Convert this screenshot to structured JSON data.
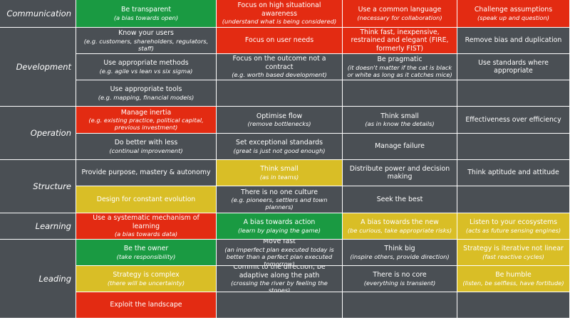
{
  "colors": {
    "green": "#1a9a42",
    "red": "#e32b12",
    "yellow": "#d9be26",
    "gray": "#4a4f54",
    "white": "#ffffff"
  },
  "sections": [
    {
      "label": "Communication",
      "rows": [
        [
          {
            "main": "Be transparent",
            "sub": "(a bias towards open)",
            "color": "green"
          },
          {
            "main": "Focus on high situational awareness",
            "sub": "(understand what is being considered)",
            "color": "red"
          },
          {
            "main": "Use a common language",
            "sub": "(necessary for collaboration)",
            "color": "red"
          },
          {
            "main": "Challenge assumptions",
            "sub": "(speak up and question)",
            "color": "red"
          }
        ]
      ]
    },
    {
      "label": "Development",
      "rows": [
        [
          {
            "main": "Know your users",
            "sub": "(e.g. customers, shareholders, regulators, staff)",
            "color": "gray"
          },
          {
            "main": "Focus on user needs",
            "sub": "",
            "color": "red"
          },
          {
            "main": "Think fast, inexpensive, restrained and elegant (FIRE, formerly FIST)",
            "sub": "",
            "color": "red"
          },
          {
            "main": "Remove bias and duplication",
            "sub": "",
            "color": "gray"
          }
        ],
        [
          {
            "main": "Use appropriate methods",
            "sub": "(e.g. agile vs lean vs six sigma)",
            "color": "gray"
          },
          {
            "main": "Focus on the outcome not a contract",
            "sub": "(e.g. worth based development)",
            "color": "gray"
          },
          {
            "main": "Be pragmatic",
            "sub": "(it doesn't matter if the cat is black or white as long as it catches mice)",
            "color": "gray"
          },
          {
            "main": "Use standards where appropriate",
            "sub": "",
            "color": "gray"
          }
        ],
        [
          {
            "main": "Use appropriate tools",
            "sub": "(e.g. mapping, financial models)",
            "color": "gray"
          },
          {
            "main": "",
            "sub": "",
            "color": "gray"
          },
          {
            "main": "",
            "sub": "",
            "color": "gray"
          },
          {
            "main": "",
            "sub": "",
            "color": "gray"
          }
        ]
      ]
    },
    {
      "label": "Operation",
      "rows": [
        [
          {
            "main": "Manage inertia",
            "sub": "(e.g. existing practice, political capital, previous investment)",
            "color": "red"
          },
          {
            "main": "Optimise flow",
            "sub": "(remove bottlenecks)",
            "color": "gray"
          },
          {
            "main": "Think small",
            "sub": "(as in know the details)",
            "color": "gray"
          },
          {
            "main": "Effectiveness over efficiency",
            "sub": "",
            "color": "gray"
          }
        ],
        [
          {
            "main": "Do better with less",
            "sub": "(continual improvement)",
            "color": "gray"
          },
          {
            "main": "Set exceptional standards",
            "sub": "(great is just not good enough)",
            "color": "gray"
          },
          {
            "main": "Manage failure",
            "sub": "",
            "color": "gray"
          },
          {
            "main": "",
            "sub": "",
            "color": "gray"
          }
        ]
      ]
    },
    {
      "label": "Structure",
      "rows": [
        [
          {
            "main": "Provide purpose, mastery & autonomy",
            "sub": "",
            "color": "gray"
          },
          {
            "main": "Think small",
            "sub": "(as in teams)",
            "color": "yellow"
          },
          {
            "main": "Distribute power and decision making",
            "sub": "",
            "color": "gray"
          },
          {
            "main": "Think aptitude and attitude",
            "sub": "",
            "color": "gray"
          }
        ],
        [
          {
            "main": "Design for constant evolution",
            "sub": "",
            "color": "yellow"
          },
          {
            "main": "There is no one culture",
            "sub": "(e.g. pioneers, settlers and town planners)",
            "color": "gray"
          },
          {
            "main": "Seek the best",
            "sub": "",
            "color": "gray"
          },
          {
            "main": "",
            "sub": "",
            "color": "gray"
          }
        ]
      ]
    },
    {
      "label": "Learning",
      "rows": [
        [
          {
            "main": "Use a systematic mechanism of learning",
            "sub": "(a bias towards data)",
            "color": "red"
          },
          {
            "main": "A bias towards action",
            "sub": "(learn by playing the game)",
            "color": "green"
          },
          {
            "main": "A bias towards the new",
            "sub": "(be curious, take appropriate risks)",
            "color": "yellow"
          },
          {
            "main": "Listen to your ecosystems",
            "sub": "(acts as future sensing engines)",
            "color": "yellow"
          }
        ]
      ]
    },
    {
      "label": "Leading",
      "rows": [
        [
          {
            "main": "Be the owner",
            "sub": "(take responsibility)",
            "color": "green"
          },
          {
            "main": "Move fast",
            "sub": "(an imperfect plan executed today is better than a perfect plan executed tomorrow)",
            "color": "gray"
          },
          {
            "main": "Think big",
            "sub": "(inspire others, provide direction)",
            "color": "gray"
          },
          {
            "main": "Strategy is iterative not linear",
            "sub": "(fast reactive cycles)",
            "color": "yellow"
          }
        ],
        [
          {
            "main": "Strategy is complex",
            "sub": "(there will be uncertainty)",
            "color": "yellow"
          },
          {
            "main": "Commit to the direction, be adaptive along the path",
            "sub": "(crossing the river by feeling the stones)",
            "color": "gray"
          },
          {
            "main": "There is no core",
            "sub": "(everything is transient)",
            "color": "gray"
          },
          {
            "main": "Be humble",
            "sub": "(listen, be selfless, have fortitude)",
            "color": "yellow"
          }
        ],
        [
          {
            "main": "Exploit the landscape",
            "sub": "",
            "color": "red"
          },
          {
            "main": "",
            "sub": "",
            "color": "gray"
          },
          {
            "main": "",
            "sub": "",
            "color": "gray"
          },
          {
            "main": "",
            "sub": "",
            "color": "gray"
          }
        ]
      ]
    }
  ]
}
